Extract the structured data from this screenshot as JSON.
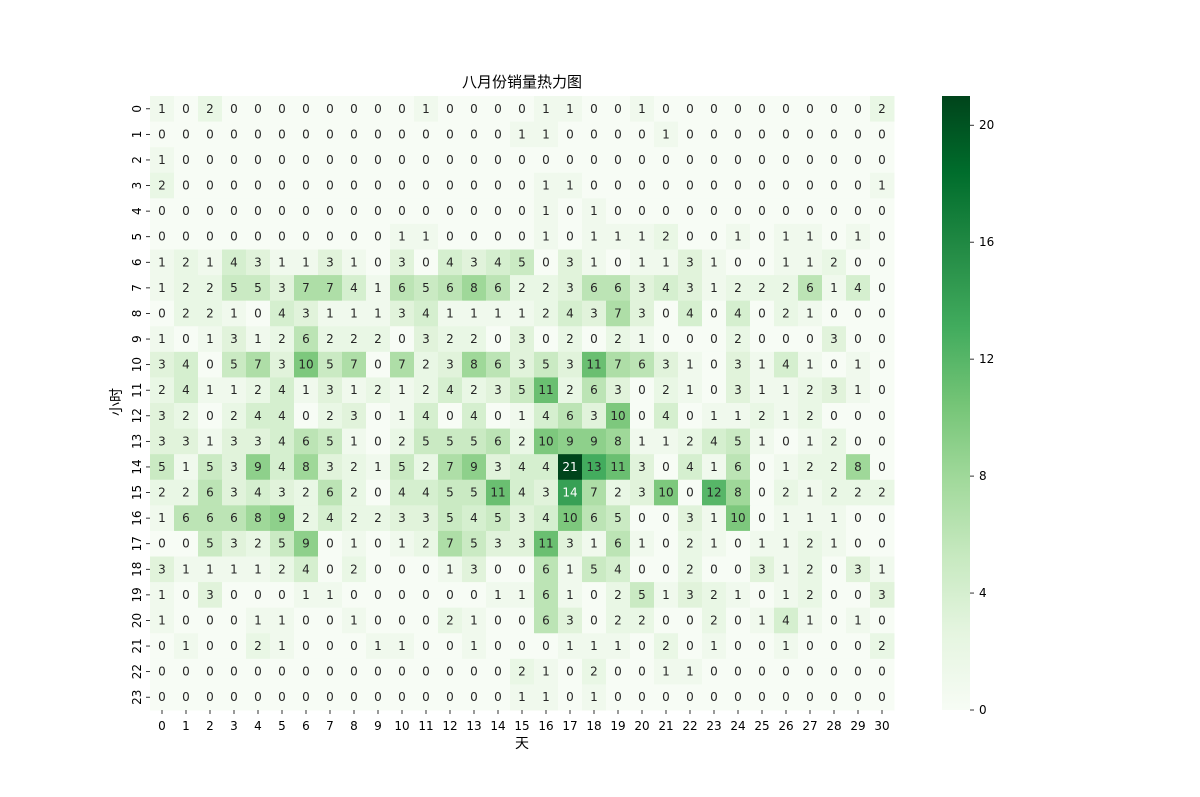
{
  "chart_data": {
    "type": "heatmap",
    "title": "八月份销量热力图",
    "xlabel": "天",
    "ylabel": "小时",
    "x_categories": [
      "0",
      "1",
      "2",
      "3",
      "4",
      "5",
      "6",
      "7",
      "8",
      "9",
      "10",
      "11",
      "12",
      "13",
      "14",
      "15",
      "16",
      "17",
      "18",
      "19",
      "20",
      "21",
      "22",
      "23",
      "24",
      "25",
      "26",
      "27",
      "28",
      "29",
      "30"
    ],
    "y_categories": [
      "0",
      "1",
      "2",
      "3",
      "4",
      "5",
      "6",
      "7",
      "8",
      "9",
      "10",
      "11",
      "12",
      "13",
      "14",
      "15",
      "16",
      "17",
      "18",
      "19",
      "20",
      "21",
      "22",
      "23"
    ],
    "values": [
      [
        1,
        0,
        2,
        0,
        0,
        0,
        0,
        0,
        0,
        0,
        0,
        1,
        0,
        0,
        0,
        0,
        1,
        1,
        0,
        0,
        1,
        0,
        0,
        0,
        0,
        0,
        0,
        0,
        0,
        0,
        2
      ],
      [
        0,
        0,
        0,
        0,
        0,
        0,
        0,
        0,
        0,
        0,
        0,
        0,
        0,
        0,
        0,
        1,
        1,
        0,
        0,
        0,
        0,
        1,
        0,
        0,
        0,
        0,
        0,
        0,
        0,
        0,
        0
      ],
      [
        1,
        0,
        0,
        0,
        0,
        0,
        0,
        0,
        0,
        0,
        0,
        0,
        0,
        0,
        0,
        0,
        0,
        0,
        0,
        0,
        0,
        0,
        0,
        0,
        0,
        0,
        0,
        0,
        0,
        0,
        0
      ],
      [
        2,
        0,
        0,
        0,
        0,
        0,
        0,
        0,
        0,
        0,
        0,
        0,
        0,
        0,
        0,
        0,
        1,
        1,
        0,
        0,
        0,
        0,
        0,
        0,
        0,
        0,
        0,
        0,
        0,
        0,
        1
      ],
      [
        0,
        0,
        0,
        0,
        0,
        0,
        0,
        0,
        0,
        0,
        0,
        0,
        0,
        0,
        0,
        0,
        1,
        0,
        1,
        0,
        0,
        0,
        0,
        0,
        0,
        0,
        0,
        0,
        0,
        0,
        0
      ],
      [
        0,
        0,
        0,
        0,
        0,
        0,
        0,
        0,
        0,
        0,
        1,
        1,
        0,
        0,
        0,
        0,
        1,
        0,
        1,
        1,
        1,
        2,
        0,
        0,
        1,
        0,
        1,
        1,
        0,
        1,
        0
      ],
      [
        1,
        2,
        1,
        4,
        3,
        1,
        1,
        3,
        1,
        0,
        3,
        0,
        4,
        3,
        4,
        5,
        0,
        3,
        1,
        0,
        1,
        1,
        3,
        1,
        0,
        0,
        1,
        1,
        2,
        0,
        0
      ],
      [
        1,
        2,
        2,
        5,
        5,
        3,
        7,
        7,
        4,
        1,
        6,
        5,
        6,
        8,
        6,
        2,
        2,
        3,
        6,
        6,
        3,
        4,
        3,
        1,
        2,
        2,
        2,
        6,
        1,
        4,
        0
      ],
      [
        0,
        2,
        2,
        1,
        0,
        4,
        3,
        1,
        1,
        1,
        3,
        4,
        1,
        1,
        1,
        1,
        2,
        4,
        3,
        7,
        3,
        0,
        4,
        0,
        4,
        0,
        2,
        1,
        0,
        0,
        0
      ],
      [
        1,
        0,
        1,
        3,
        1,
        2,
        6,
        2,
        2,
        2,
        0,
        3,
        2,
        2,
        0,
        3,
        0,
        2,
        0,
        2,
        1,
        0,
        0,
        0,
        2,
        0,
        0,
        0,
        3,
        0,
        0
      ],
      [
        3,
        4,
        0,
        5,
        7,
        3,
        10,
        5,
        7,
        0,
        7,
        2,
        3,
        8,
        6,
        3,
        5,
        3,
        11,
        7,
        6,
        3,
        1,
        0,
        3,
        1,
        4,
        1,
        0,
        1,
        0
      ],
      [
        2,
        4,
        1,
        1,
        2,
        4,
        1,
        3,
        1,
        2,
        1,
        2,
        4,
        2,
        3,
        5,
        11,
        2,
        6,
        3,
        0,
        2,
        1,
        0,
        3,
        1,
        1,
        2,
        3,
        1,
        0
      ],
      [
        3,
        2,
        0,
        2,
        4,
        4,
        0,
        2,
        3,
        0,
        1,
        4,
        0,
        4,
        0,
        1,
        4,
        6,
        3,
        10,
        0,
        4,
        0,
        1,
        1,
        2,
        1,
        2,
        0,
        0,
        0
      ],
      [
        3,
        3,
        1,
        3,
        3,
        4,
        6,
        5,
        1,
        0,
        2,
        5,
        5,
        5,
        6,
        2,
        10,
        9,
        9,
        8,
        1,
        1,
        2,
        4,
        5,
        1,
        0,
        1,
        2,
        0,
        0
      ],
      [
        5,
        1,
        5,
        3,
        9,
        4,
        8,
        3,
        2,
        1,
        5,
        2,
        7,
        9,
        3,
        4,
        4,
        21,
        13,
        11,
        3,
        0,
        4,
        1,
        6,
        0,
        1,
        2,
        2,
        8,
        0
      ],
      [
        2,
        2,
        6,
        3,
        4,
        3,
        2,
        6,
        2,
        0,
        4,
        4,
        5,
        5,
        11,
        4,
        3,
        14,
        7,
        2,
        3,
        10,
        0,
        12,
        8,
        0,
        2,
        1,
        2,
        2,
        2
      ],
      [
        1,
        6,
        6,
        6,
        8,
        9,
        2,
        4,
        2,
        2,
        3,
        3,
        5,
        4,
        5,
        3,
        4,
        10,
        6,
        5,
        0,
        0,
        3,
        1,
        10,
        0,
        1,
        1,
        1,
        0,
        0
      ],
      [
        0,
        0,
        5,
        3,
        2,
        5,
        9,
        0,
        1,
        0,
        1,
        2,
        7,
        5,
        3,
        3,
        11,
        3,
        1,
        6,
        1,
        0,
        2,
        1,
        0,
        1,
        1,
        2,
        1,
        0,
        0
      ],
      [
        3,
        1,
        1,
        1,
        1,
        2,
        4,
        0,
        2,
        0,
        0,
        0,
        1,
        3,
        0,
        0,
        6,
        1,
        5,
        4,
        0,
        0,
        2,
        0,
        0,
        3,
        1,
        2,
        0,
        3,
        1
      ],
      [
        1,
        0,
        3,
        0,
        0,
        0,
        1,
        1,
        0,
        0,
        0,
        0,
        0,
        0,
        1,
        1,
        6,
        1,
        0,
        2,
        5,
        1,
        3,
        2,
        1,
        0,
        1,
        2,
        0,
        0,
        3
      ],
      [
        1,
        0,
        0,
        0,
        1,
        1,
        0,
        0,
        1,
        0,
        0,
        0,
        2,
        1,
        0,
        0,
        6,
        3,
        0,
        2,
        2,
        0,
        0,
        2,
        0,
        1,
        4,
        1,
        0,
        1,
        0
      ],
      [
        0,
        1,
        0,
        0,
        2,
        1,
        0,
        0,
        0,
        1,
        1,
        0,
        0,
        1,
        0,
        0,
        0,
        1,
        1,
        1,
        0,
        2,
        0,
        1,
        0,
        0,
        1,
        0,
        0,
        0,
        2
      ],
      [
        0,
        0,
        0,
        0,
        0,
        0,
        0,
        0,
        0,
        0,
        0,
        0,
        0,
        0,
        0,
        2,
        1,
        0,
        2,
        0,
        0,
        1,
        1,
        0,
        0,
        0,
        0,
        0,
        0,
        0,
        0
      ],
      [
        0,
        0,
        0,
        0,
        0,
        0,
        0,
        0,
        0,
        0,
        0,
        0,
        0,
        0,
        0,
        1,
        1,
        0,
        1,
        0,
        0,
        0,
        0,
        0,
        0,
        0,
        0,
        0,
        0,
        0,
        0
      ]
    ],
    "colormap": "Greens",
    "vmin": 0,
    "vmax": 21,
    "colorbar_ticks": [
      0,
      4,
      8,
      12,
      16,
      20
    ],
    "annotations": true,
    "grid": false
  }
}
